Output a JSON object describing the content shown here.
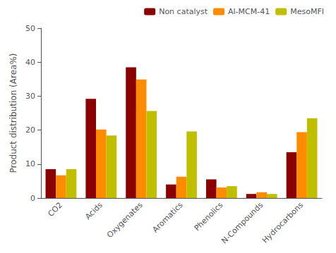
{
  "chart_data": {
    "type": "bar",
    "categories": [
      "CO2",
      "Acids",
      "Oxygenates",
      "Aromatics",
      "Phenolics",
      "N-Compounds",
      "Hydrocarbons"
    ],
    "series": [
      {
        "name": "Non catalyst",
        "color": "#8B0000",
        "values": [
          8.5,
          29.2,
          38.5,
          4.0,
          5.5,
          1.2,
          13.5
        ]
      },
      {
        "name": "Al-MCM-41",
        "color": "#FF8C00",
        "values": [
          6.7,
          20.2,
          34.9,
          6.3,
          3.1,
          1.7,
          19.4
        ]
      },
      {
        "name": "MesoMFI",
        "color": "#BFBF00",
        "values": [
          8.5,
          18.4,
          25.6,
          19.6,
          3.5,
          1.2,
          23.5
        ]
      }
    ],
    "ylabel": "Product distribution (Area%)",
    "ylim": [
      0,
      50
    ],
    "yticks": [
      0,
      10,
      20,
      30,
      40,
      50
    ],
    "grid": false,
    "legend": "upper right"
  }
}
